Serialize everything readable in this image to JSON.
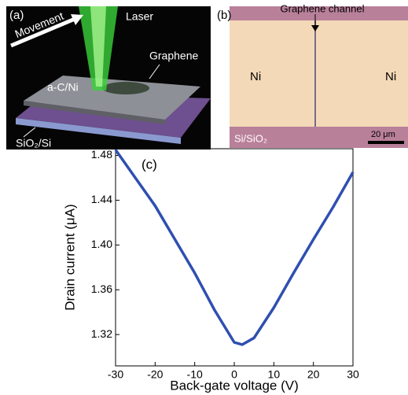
{
  "panel_a": {
    "label": "(a)",
    "movement": "Movement",
    "laser": "Laser",
    "graphene": "Graphene",
    "layer": "a-C/Ni",
    "substrate": "SiO₂/Si"
  },
  "panel_b": {
    "label": "(b)",
    "channel": "Graphene channel",
    "left": "Ni",
    "right": "Ni",
    "substrate": "Si/SiO₂",
    "scale": "20 μm"
  },
  "chart_data": {
    "type": "line",
    "annotation": "(c)",
    "x_label": "Back-gate voltage (V)",
    "y_label": "Drain current (μA)",
    "x": [
      -30,
      -25,
      -20,
      -15,
      -10,
      -5,
      0,
      2,
      5,
      10,
      15,
      20,
      25,
      30
    ],
    "series": [
      {
        "color": "#2f4fb0",
        "values": [
          1.485,
          1.46,
          1.435,
          1.405,
          1.375,
          1.342,
          1.313,
          1.311,
          1.317,
          1.344,
          1.375,
          1.405,
          1.434,
          1.465
        ]
      }
    ],
    "xlim": [
      -30,
      30
    ],
    "xticks": [
      -30,
      -20,
      -10,
      0,
      10,
      20,
      30
    ],
    "ylim": [
      1.292,
      1.486
    ],
    "yticks": [
      1.32,
      1.36,
      {
        "value": 1.4,
        "label": "1.40"
      },
      1.44,
      1.48
    ]
  }
}
